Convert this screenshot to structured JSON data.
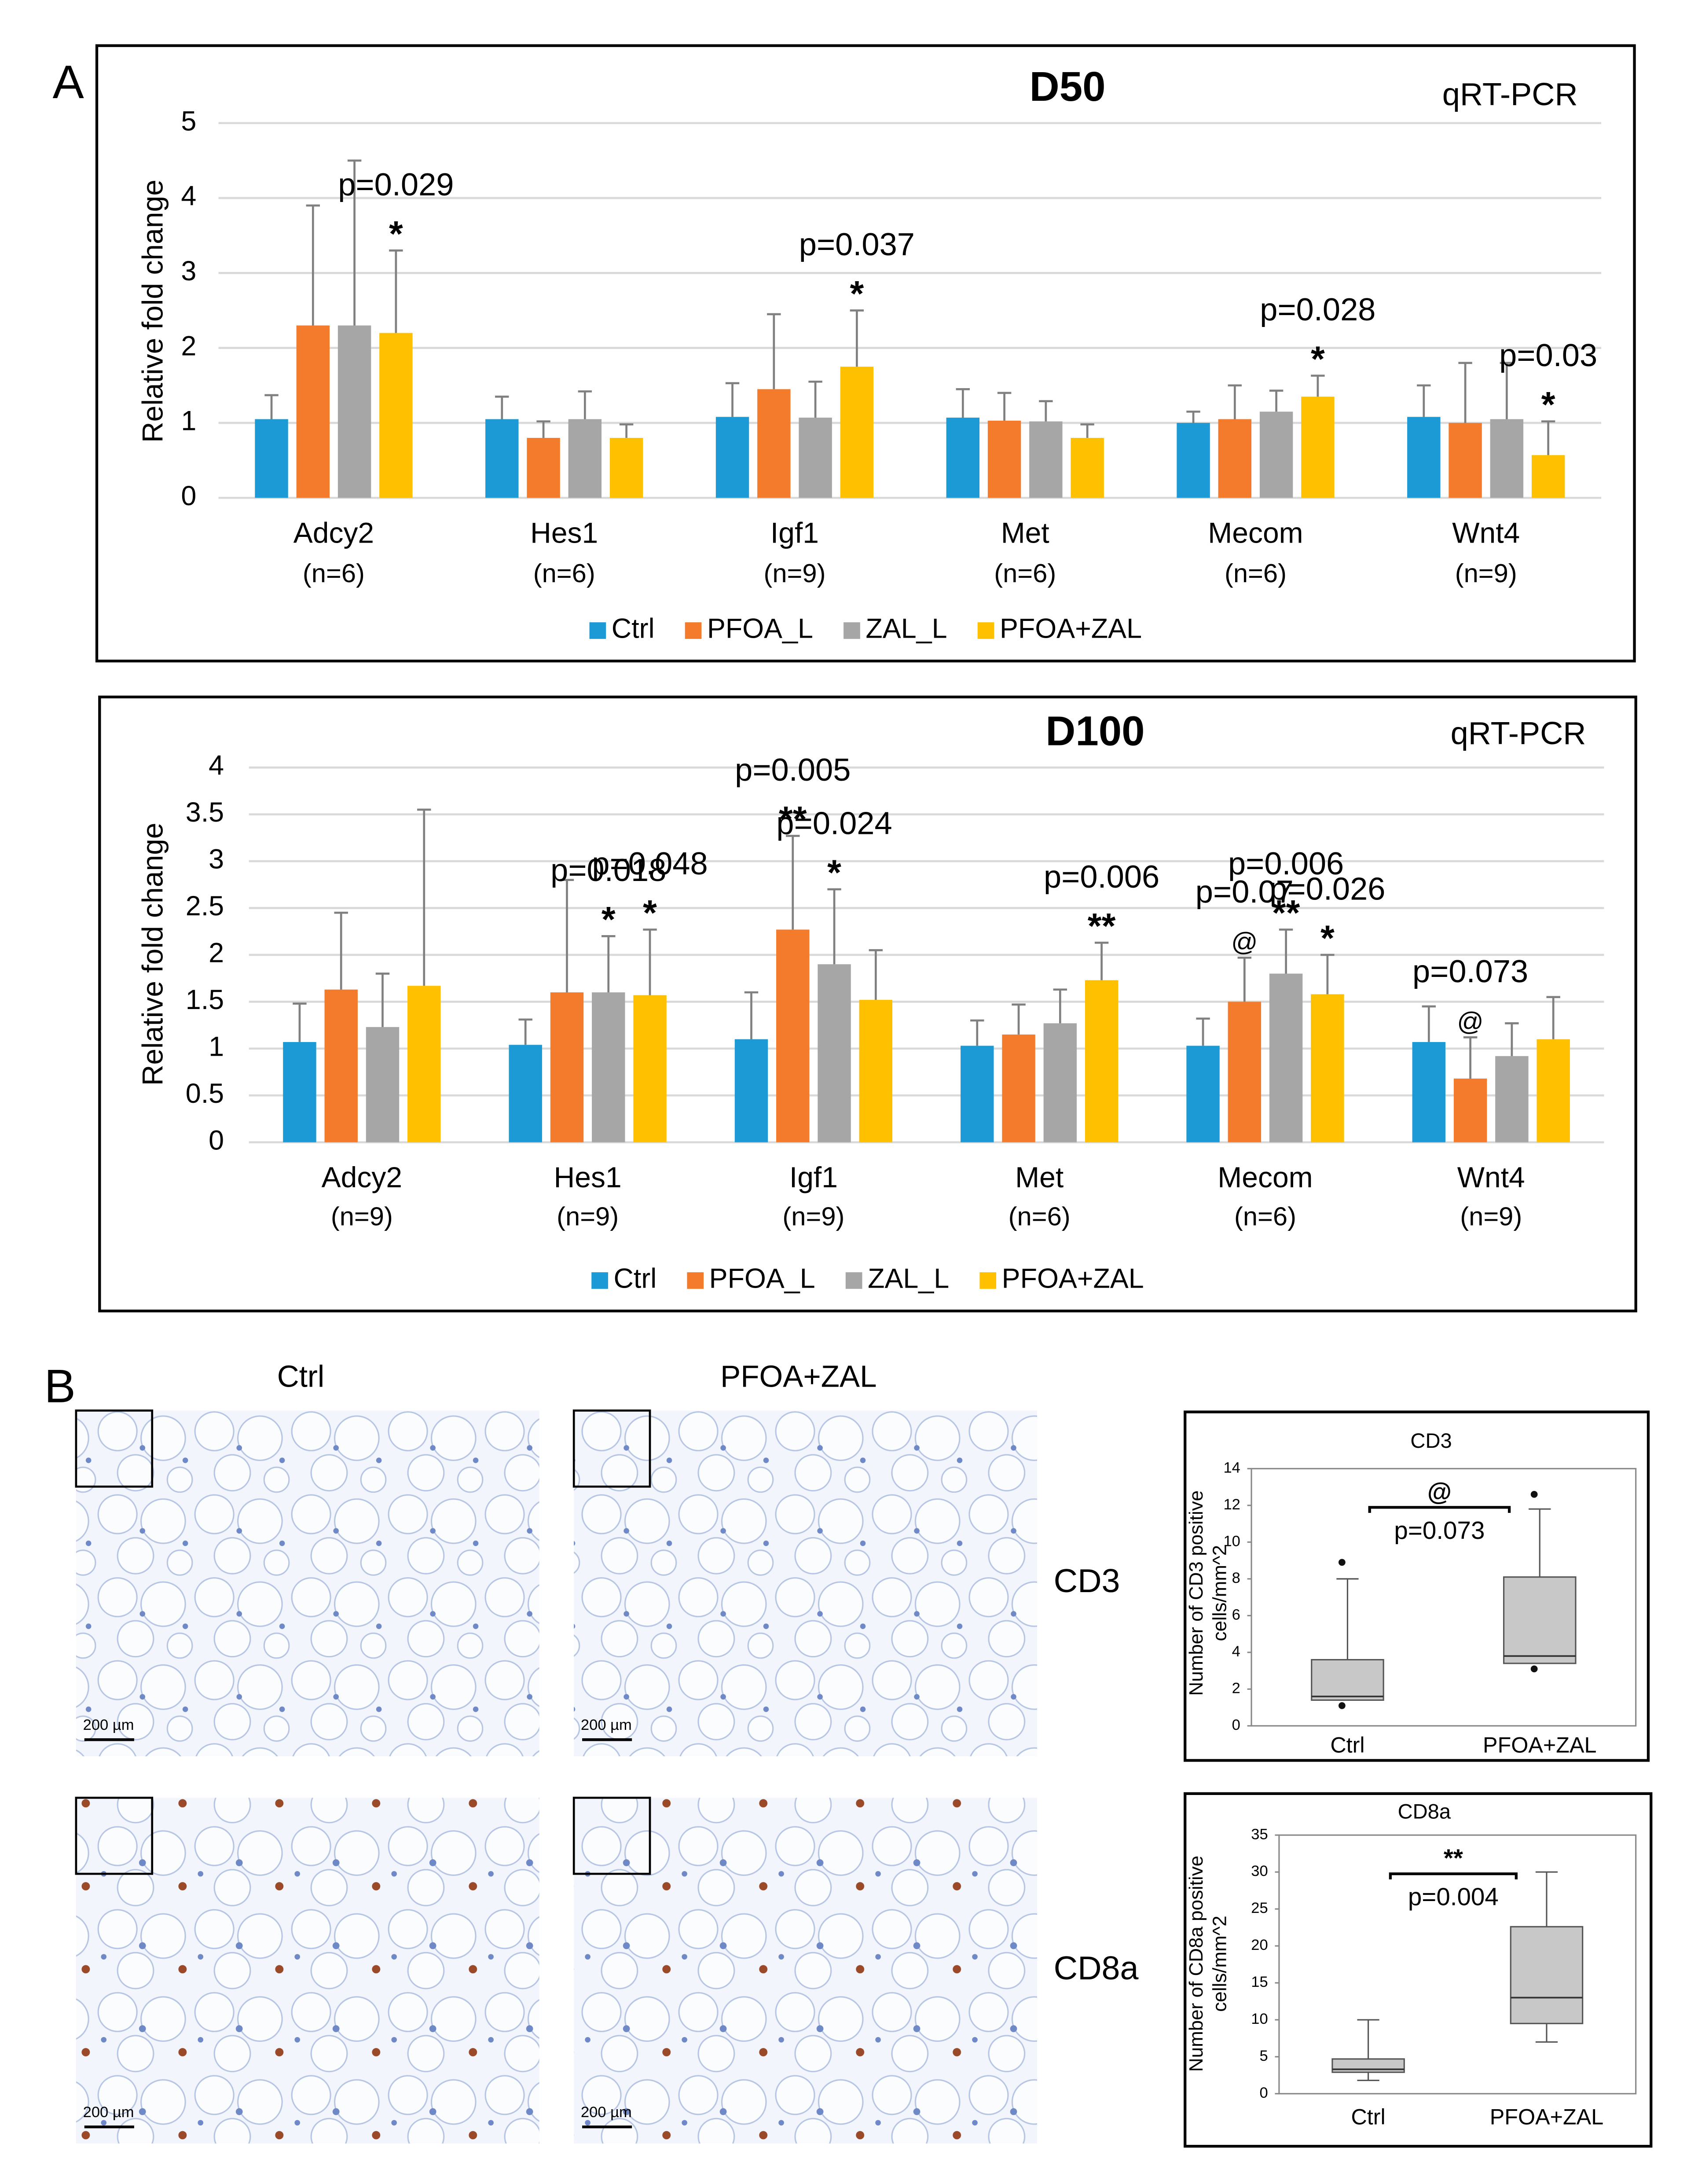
{
  "panel_labels": [
    "A",
    "B"
  ],
  "chart_data": [
    {
      "type": "bar",
      "title": "D50",
      "subtitle": "qRT-PCR",
      "y_label": "Relative fold change",
      "categories": [
        "Adcy2",
        "Hes1",
        "Igf1",
        "Met",
        "Mecom",
        "Wnt4"
      ],
      "category_notes": [
        "(n=6)",
        "(n=6)",
        "(n=9)",
        "(n=6)",
        "(n=6)",
        "(n=9)"
      ],
      "series": [
        {
          "name": "Ctrl",
          "color": "#1b9ad6",
          "values": [
            1.05,
            1.05,
            1.08,
            1.07,
            1.0,
            1.08
          ],
          "errors": [
            0.32,
            0.3,
            0.45,
            0.38,
            0.15,
            0.42
          ]
        },
        {
          "name": "PFOA_L",
          "color": "#f47b2b",
          "values": [
            2.3,
            0.8,
            1.45,
            1.03,
            1.05,
            1.0
          ],
          "errors": [
            1.6,
            0.22,
            1.0,
            0.37,
            0.45,
            0.8
          ]
        },
        {
          "name": "ZAL_L",
          "color": "#a6a6a6",
          "values": [
            2.3,
            1.05,
            1.07,
            1.02,
            1.15,
            1.05
          ],
          "errors": [
            2.2,
            0.37,
            0.48,
            0.27,
            0.28,
            0.75
          ]
        },
        {
          "name": "PFOA+ZAL",
          "color": "#ffc000",
          "values": [
            2.2,
            0.8,
            1.75,
            0.8,
            1.35,
            0.57
          ],
          "errors": [
            1.1,
            0.18,
            0.75,
            0.18,
            0.28,
            0.45
          ]
        }
      ],
      "ylim": [
        0,
        5
      ],
      "yticks": [
        0,
        1,
        2,
        3,
        4,
        5
      ],
      "grid": true,
      "annotations": [
        {
          "category": 0,
          "series": 3,
          "texts": [
            "*",
            "p=0.029"
          ]
        },
        {
          "category": 2,
          "series": 3,
          "texts": [
            "*",
            "p=0.037"
          ]
        },
        {
          "category": 4,
          "series": 3,
          "texts": [
            "*",
            "p=0.028"
          ]
        },
        {
          "category": 5,
          "series": 3,
          "texts": [
            "*",
            "p=0.03"
          ]
        }
      ]
    },
    {
      "type": "bar",
      "title": "D100",
      "subtitle": "qRT-PCR",
      "y_label": "Relative fold change",
      "categories": [
        "Adcy2",
        "Hes1",
        "Igf1",
        "Met",
        "Mecom",
        "Wnt4"
      ],
      "category_notes": [
        "(n=9)",
        "(n=9)",
        "(n=9)",
        "(n=6)",
        "(n=6)",
        "(n=9)"
      ],
      "series": [
        {
          "name": "Ctrl",
          "color": "#1b9ad6",
          "values": [
            1.07,
            1.04,
            1.1,
            1.03,
            1.03,
            1.07
          ],
          "errors": [
            0.41,
            0.27,
            0.5,
            0.27,
            0.29,
            0.38
          ]
        },
        {
          "name": "PFOA_L",
          "color": "#f47b2b",
          "values": [
            1.63,
            1.6,
            2.27,
            1.15,
            1.5,
            0.68
          ],
          "errors": [
            0.82,
            1.2,
            1.0,
            0.32,
            0.47,
            0.44
          ]
        },
        {
          "name": "ZAL_L",
          "color": "#a6a6a6",
          "values": [
            1.23,
            1.6,
            1.9,
            1.27,
            1.8,
            0.92
          ],
          "errors": [
            0.57,
            0.6,
            0.8,
            0.36,
            0.47,
            0.35
          ]
        },
        {
          "name": "PFOA+ZAL",
          "color": "#ffc000",
          "values": [
            1.67,
            1.57,
            1.52,
            1.73,
            1.58,
            1.1
          ],
          "errors": [
            1.88,
            0.7,
            0.53,
            0.4,
            0.42,
            0.45
          ]
        }
      ],
      "ylim": [
        0,
        4
      ],
      "yticks": [
        0,
        0.5,
        1,
        1.5,
        2,
        2.5,
        3,
        3.5,
        4
      ],
      "grid": true,
      "annotations": [
        {
          "category": 1,
          "series": 2,
          "texts": [
            "*",
            "p=0.018"
          ]
        },
        {
          "category": 1,
          "series": 3,
          "texts": [
            "*",
            "p=0.048"
          ]
        },
        {
          "category": 2,
          "series": 1,
          "texts": [
            "**",
            "p=0.005"
          ]
        },
        {
          "category": 2,
          "series": 2,
          "texts": [
            "*",
            "p=0.024"
          ]
        },
        {
          "category": 3,
          "series": 3,
          "texts": [
            "**",
            "p=0.006"
          ]
        },
        {
          "category": 4,
          "series": 1,
          "texts": [
            "@",
            "p=0.07"
          ]
        },
        {
          "category": 4,
          "series": 2,
          "texts": [
            "**",
            "p=0.006"
          ]
        },
        {
          "category": 4,
          "series": 3,
          "texts": [
            "*",
            "p=0.026"
          ]
        },
        {
          "category": 5,
          "series": 1,
          "texts": [
            "@",
            "p=0.073"
          ]
        }
      ]
    },
    {
      "type": "box",
      "title": "CD3",
      "y_label": [
        "Number of CD3 positive",
        "cells/mm^2"
      ],
      "categories": [
        "Ctrl",
        "PFOA+ZAL"
      ],
      "color": "#c8c8c8",
      "boxes": [
        {
          "min": 1.4,
          "q1": 1.4,
          "median": 1.6,
          "q3": 3.6,
          "max": 8.0,
          "outliers": [
            1.1,
            8.9
          ]
        },
        {
          "min": 3.4,
          "q1": 3.4,
          "median": 3.8,
          "q3": 8.1,
          "max": 11.8,
          "outliers": [
            3.1,
            12.6
          ]
        }
      ],
      "ylim": [
        0,
        14
      ],
      "yticks": [
        0,
        2,
        4,
        6,
        8,
        10,
        12,
        14
      ],
      "annotation": {
        "texts": [
          "@",
          "p=0.073"
        ]
      }
    },
    {
      "type": "box",
      "title": "CD8a",
      "y_label": [
        "Number of CD8a positive",
        "cells/mm^2"
      ],
      "categories": [
        "Ctrl",
        "PFOA+ZAL"
      ],
      "color": "#c8c8c8",
      "boxes": [
        {
          "min": 1.8,
          "q1": 2.9,
          "median": 3.3,
          "q3": 4.7,
          "max": 10,
          "outliers": []
        },
        {
          "min": 7,
          "q1": 9.5,
          "median": 13,
          "q3": 22.6,
          "max": 30,
          "outliers": []
        }
      ],
      "ylim": [
        0,
        35
      ],
      "yticks": [
        0,
        5,
        10,
        15,
        20,
        25,
        30,
        35
      ],
      "annotation": {
        "texts": [
          "**",
          "p=0.004"
        ]
      }
    }
  ],
  "micrographs": {
    "columns": [
      "Ctrl",
      "PFOA+ZAL"
    ],
    "rows": [
      "CD3",
      "CD8a"
    ],
    "scale_bar": "200 µm"
  }
}
